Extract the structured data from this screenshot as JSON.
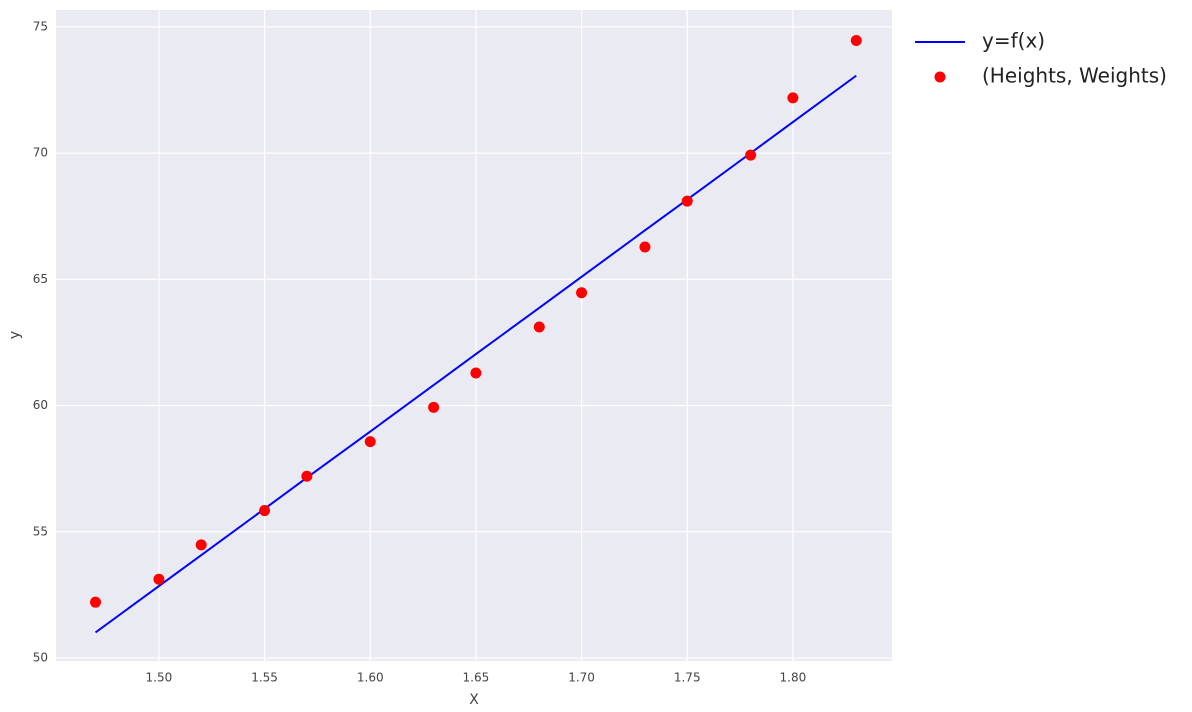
{
  "chart_data": {
    "type": "scatter",
    "xlabel": "X",
    "ylabel": "y",
    "x": [
      1.47,
      1.5,
      1.52,
      1.55,
      1.57,
      1.6,
      1.63,
      1.65,
      1.68,
      1.7,
      1.73,
      1.75,
      1.78,
      1.8,
      1.83
    ],
    "series": [
      {
        "name": "y=f(x)",
        "color": "#0000ff",
        "style": "line",
        "values": [
          51.01,
          52.85,
          54.07,
          55.91,
          57.14,
          58.97,
          60.81,
          62.04,
          63.87,
          65.1,
          66.94,
          68.16,
          70.0,
          71.23,
          73.07
        ]
      },
      {
        "name": "(Heights, Weights)",
        "color": "#ff0000",
        "style": "points",
        "values": [
          52.21,
          53.12,
          54.48,
          55.84,
          57.2,
          58.57,
          59.93,
          61.29,
          63.11,
          64.47,
          66.28,
          68.1,
          69.92,
          72.19,
          74.46
        ]
      }
    ],
    "xlim": [
      1.4513,
      1.8469
    ],
    "xticks": [
      {
        "value": 1.5,
        "label": "1.50"
      },
      {
        "value": 1.55,
        "label": "1.55"
      },
      {
        "value": 1.6,
        "label": "1.60"
      },
      {
        "value": 1.65,
        "label": "1.65"
      },
      {
        "value": 1.7,
        "label": "1.70"
      },
      {
        "value": 1.75,
        "label": "1.75"
      },
      {
        "value": 1.8,
        "label": "1.80"
      }
    ],
    "ylim": [
      49.88,
      75.67
    ],
    "yticks": [
      50,
      55,
      60,
      65,
      70,
      75
    ],
    "grid": true,
    "legend": "outside-upper-right"
  }
}
